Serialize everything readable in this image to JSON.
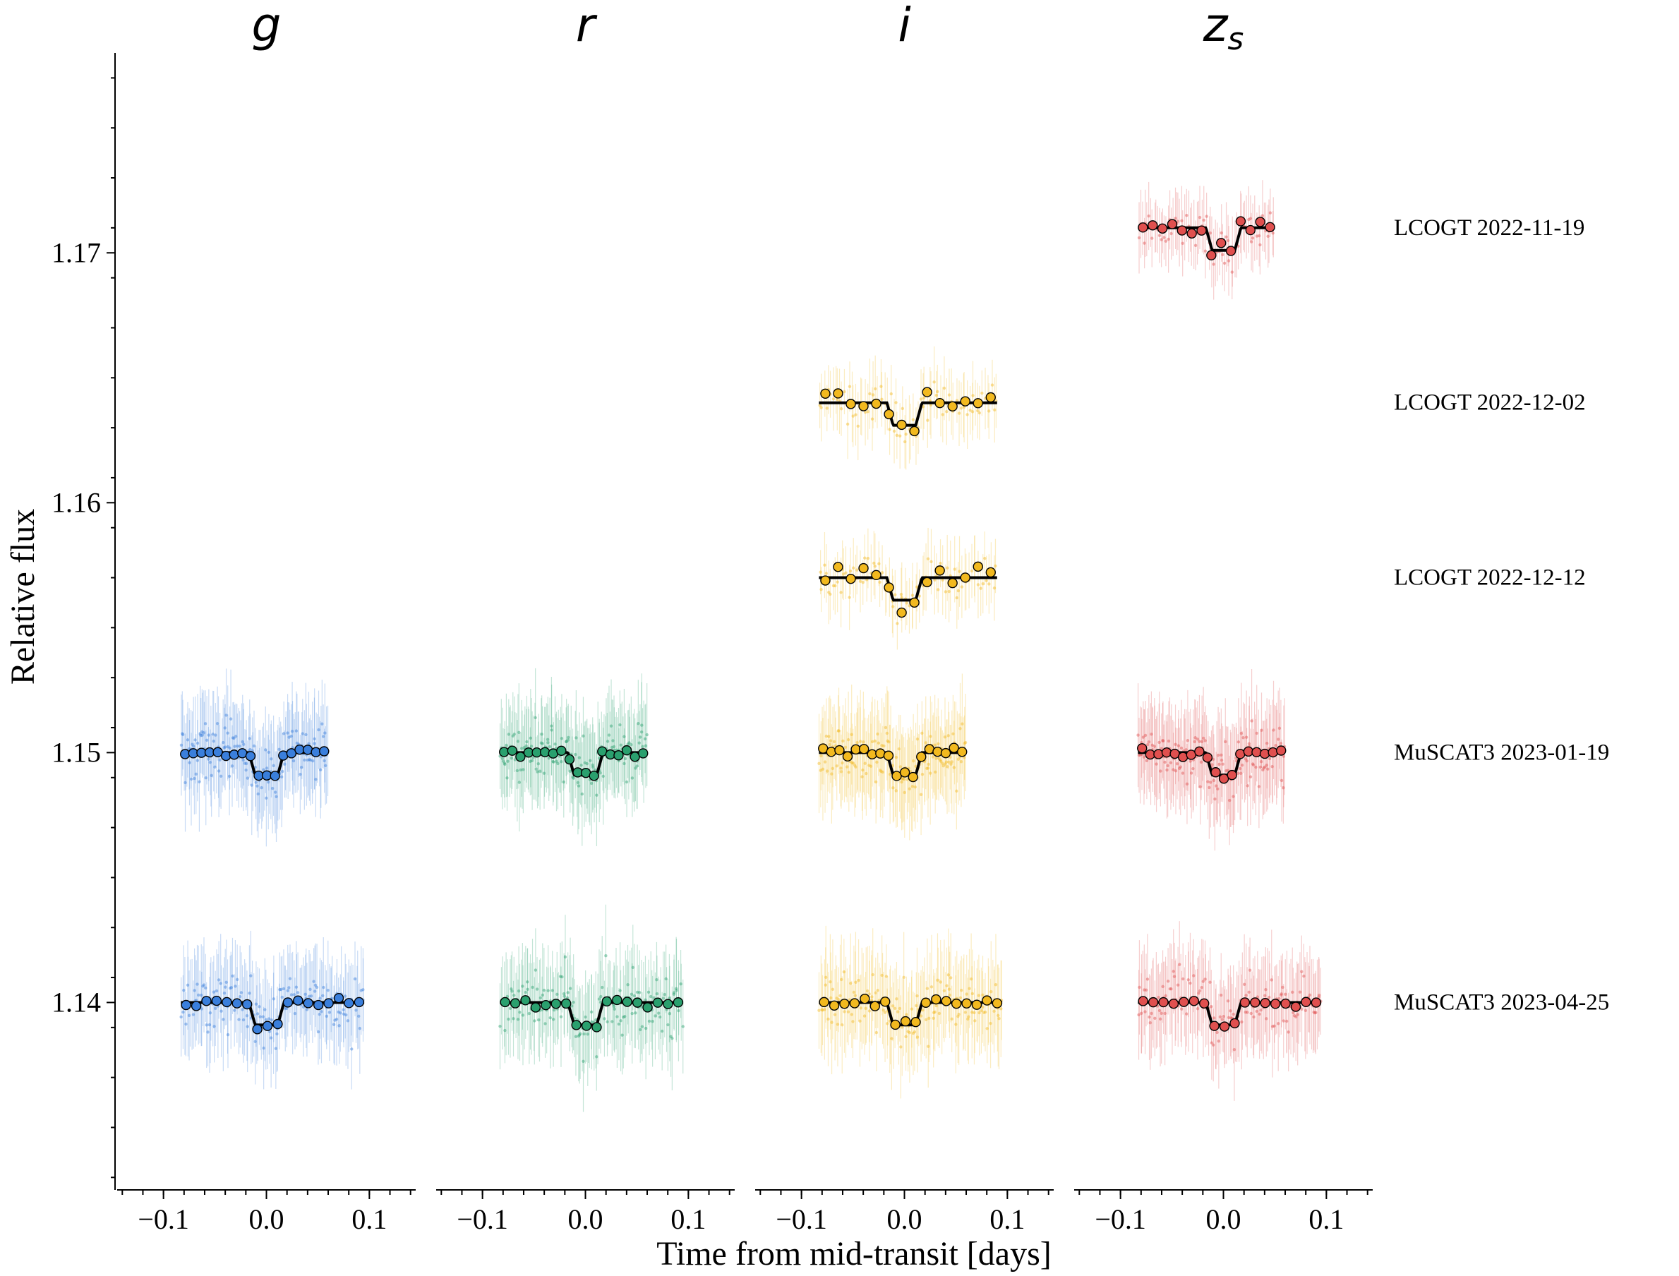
{
  "colors": {
    "g": "#3a7fdc",
    "r": "#2aa06e",
    "i": "#f2b91f",
    "zs": "#e0504f",
    "model": "#000000",
    "axis": "#000000"
  },
  "chart_data": {
    "type": "scatter",
    "xlabel": "Time from mid-transit [days]",
    "ylabel": "Relative flux",
    "panels": [
      {
        "key": "g",
        "title_main": "g",
        "title_sub": ""
      },
      {
        "key": "r",
        "title_main": "r",
        "title_sub": ""
      },
      {
        "key": "i",
        "title_main": "i",
        "title_sub": ""
      },
      {
        "key": "zs",
        "title_main": "z",
        "title_sub": "s"
      }
    ],
    "xlim": [
      -0.145,
      0.145
    ],
    "ylim": [
      1.1325,
      1.178
    ],
    "xticks": [
      -0.1,
      0.0,
      0.1
    ],
    "xtick_labels": [
      "−0.1",
      "0.0",
      "0.1"
    ],
    "yticks": [
      1.14,
      1.15,
      1.16,
      1.17
    ],
    "ytick_labels": [
      "1.14",
      "1.15",
      "1.16",
      "1.17"
    ],
    "grid": false,
    "transit": {
      "depth": 0.0009,
      "half_width": 0.017,
      "ingress": 0.006
    },
    "observations": [
      {
        "label": "LCOGT 2022-11-19",
        "baseline": 1.171,
        "bands": [
          "zs"
        ],
        "x_range": [
          -0.083,
          0.05
        ]
      },
      {
        "label": "LCOGT 2022-12-02",
        "baseline": 1.164,
        "bands": [
          "i"
        ],
        "x_range": [
          -0.083,
          0.09
        ]
      },
      {
        "label": "LCOGT 2022-12-12",
        "baseline": 1.157,
        "bands": [
          "i"
        ],
        "x_range": [
          -0.083,
          0.09
        ]
      },
      {
        "label": "MuSCAT3 2023-01-19",
        "baseline": 1.15,
        "bands": [
          "g",
          "r",
          "i",
          "zs"
        ],
        "x_range": [
          -0.083,
          0.06
        ]
      },
      {
        "label": "MuSCAT3 2023-04-25",
        "baseline": 1.14,
        "bands": [
          "g",
          "r",
          "i",
          "zs"
        ],
        "x_range": [
          -0.083,
          0.095
        ]
      }
    ]
  }
}
